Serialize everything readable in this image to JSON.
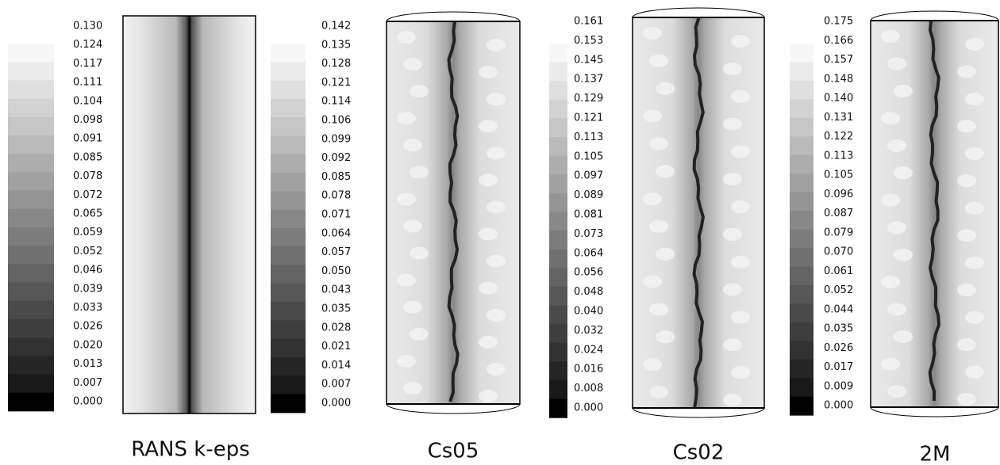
{
  "panels": [
    {
      "caption": "RANS k-eps",
      "ticks": [
        "0.130",
        "0.124",
        "0.117",
        "0.111",
        "0.104",
        "0.098",
        "0.091",
        "0.085",
        "0.078",
        "0.072",
        "0.065",
        "0.059",
        "0.052",
        "0.046",
        "0.039",
        "0.033",
        "0.026",
        "0.020",
        "0.013",
        "0.007",
        "0.000"
      ]
    },
    {
      "caption": "Cs05",
      "ticks": [
        "0.142",
        "0.135",
        "0.128",
        "0.121",
        "0.114",
        "0.106",
        "0.099",
        "0.092",
        "0.085",
        "0.078",
        "0.071",
        "0.064",
        "0.057",
        "0.050",
        "0.043",
        "0.035",
        "0.028",
        "0.021",
        "0.014",
        "0.007",
        "0.000"
      ]
    },
    {
      "caption": "Cs02",
      "ticks": [
        "0.161",
        "0.153",
        "0.145",
        "0.137",
        "0.129",
        "0.121",
        "0.113",
        "0.105",
        "0.097",
        "0.089",
        "0.081",
        "0.073",
        "0.064",
        "0.056",
        "0.048",
        "0.040",
        "0.032",
        "0.024",
        "0.016",
        "0.008",
        "0.000"
      ]
    },
    {
      "caption": "2M",
      "ticks": [
        "0.175",
        "0.166",
        "0.157",
        "0.148",
        "0.140",
        "0.131",
        "0.122",
        "0.113",
        "0.105",
        "0.096",
        "0.087",
        "0.079",
        "0.070",
        "0.061",
        "0.052",
        "0.044",
        "0.035",
        "0.026",
        "0.017",
        "0.009",
        "0.000"
      ]
    }
  ]
}
